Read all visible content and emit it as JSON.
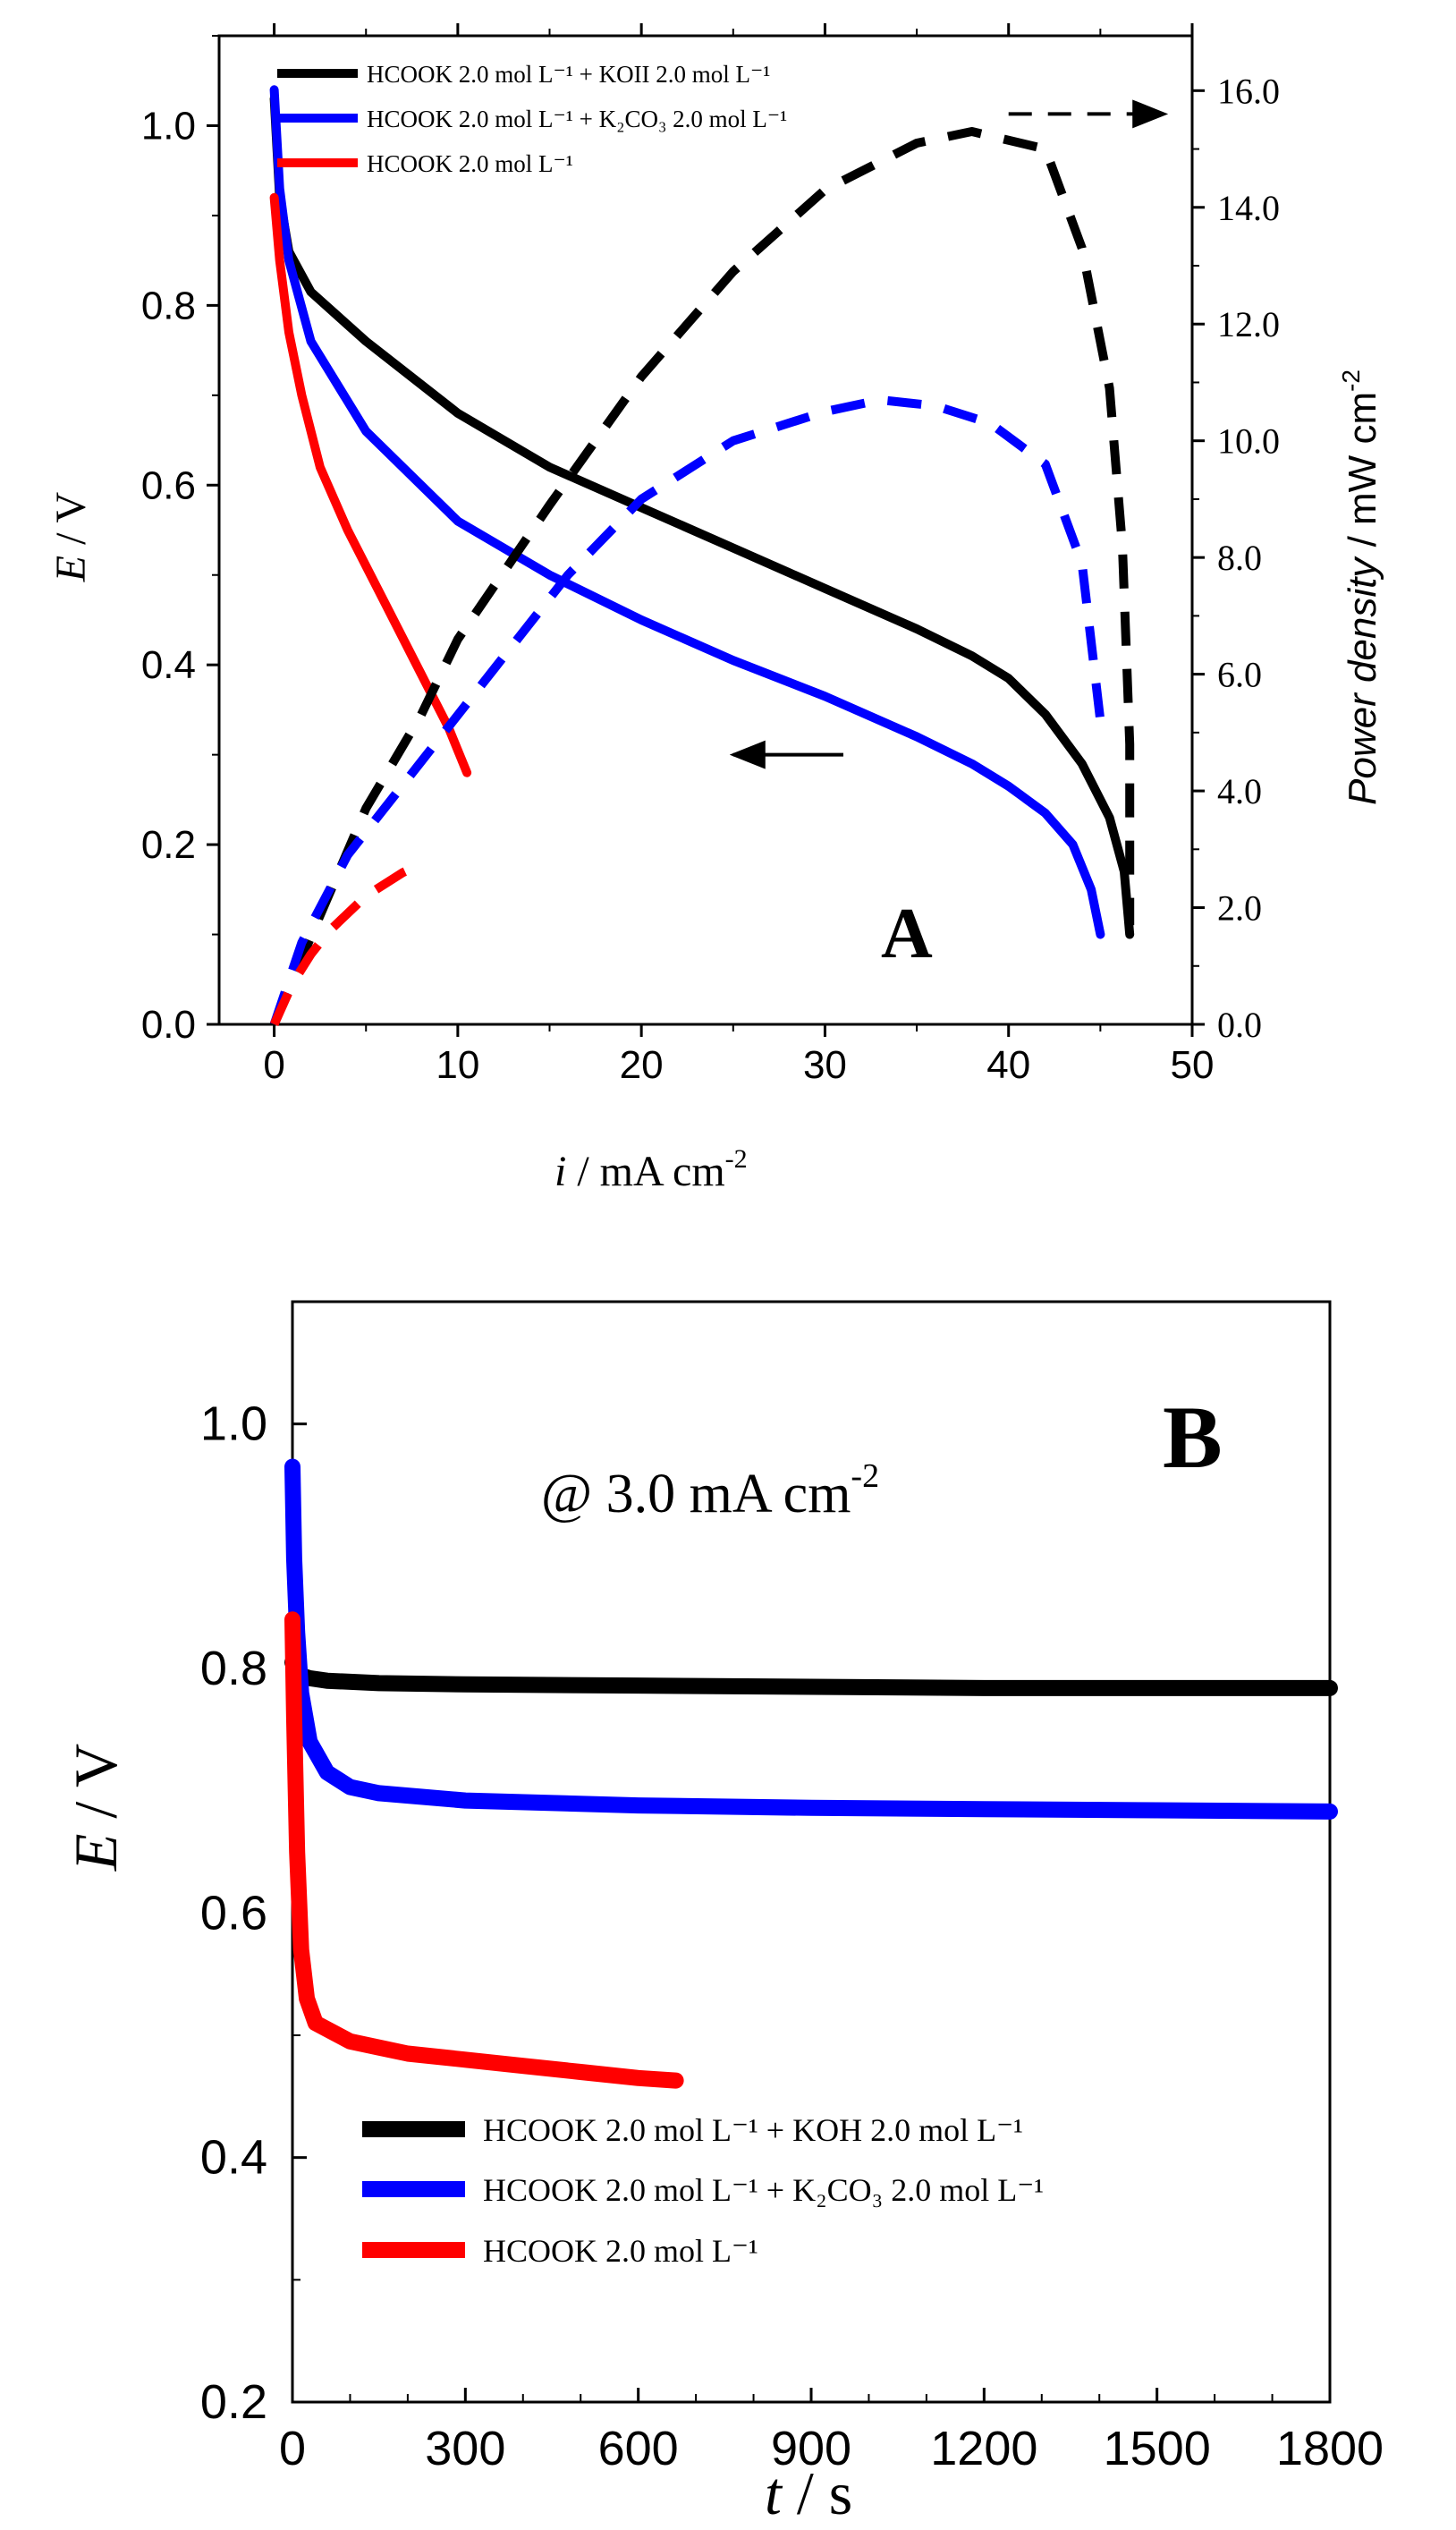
{
  "colors": {
    "koh": "#000000",
    "k2co3": "#0000ff",
    "hcook": "#ff0000",
    "bg": "#ffffff",
    "frame": "#000000"
  },
  "chart_data": [
    {
      "type": "line",
      "panel_label": "A",
      "xlabel_italic": "i",
      "xlabel_rest": " / mA cm",
      "xlabel_sup": "-2",
      "ylabel_italic": "E",
      "ylabel_rest": " / V",
      "y2label_italic": "Power density",
      "y2label_rest": " / mW cm",
      "y2label_sup": "-2",
      "xlim": [
        -3,
        50
      ],
      "ylim": [
        0,
        1.1
      ],
      "y2lim": [
        0,
        16.94
      ],
      "xticks": [
        0,
        10,
        20,
        30,
        40,
        50
      ],
      "xtick_labels": [
        "0",
        "10",
        "20",
        "30",
        "40",
        "50"
      ],
      "yticks": [
        0,
        0.2,
        0.4,
        0.6,
        0.8,
        1.0
      ],
      "ytick_labels": [
        "0.0",
        "0.2",
        "0.4",
        "0.6",
        "0.8",
        "1.0"
      ],
      "y2ticks": [
        0,
        2,
        4,
        6,
        8,
        10,
        12,
        14,
        16
      ],
      "y2tick_labels": [
        "0.0",
        "2.0",
        "4.0",
        "6.0",
        "8.0",
        "10.0",
        "12.0",
        "14.0",
        "16.0"
      ],
      "legend": [
        {
          "key": "koh",
          "color": "#000000",
          "text": "HCOOK  2.0  mol L⁻¹  +  KOII    2.0 mol L⁻¹"
        },
        {
          "key": "k2co3",
          "color": "#0000ff",
          "text": "HCOOK  2.0  mol L⁻¹ + K₂CO₃   2.0 mol L⁻¹"
        },
        {
          "key": "hcook",
          "color": "#ff0000",
          "text": "HCOOK   2.0   mol L⁻¹"
        }
      ],
      "series": [
        {
          "key": "koh",
          "kind": "polarization",
          "color": "#000000",
          "points": [
            [
              0,
              1.03
            ],
            [
              0.3,
              0.92
            ],
            [
              0.8,
              0.86
            ],
            [
              2,
              0.815
            ],
            [
              5,
              0.76
            ],
            [
              10,
              0.68
            ],
            [
              15,
              0.62
            ],
            [
              20,
              0.575
            ],
            [
              25,
              0.53
            ],
            [
              30,
              0.485
            ],
            [
              35,
              0.44
            ],
            [
              38,
              0.41
            ],
            [
              40,
              0.385
            ],
            [
              42,
              0.345
            ],
            [
              44,
              0.29
            ],
            [
              45.5,
              0.23
            ],
            [
              46.3,
              0.17
            ],
            [
              46.6,
              0.1
            ]
          ]
        },
        {
          "key": "k2co3",
          "kind": "polarization",
          "color": "#0000ff",
          "points": [
            [
              0,
              1.04
            ],
            [
              0.3,
              0.93
            ],
            [
              0.8,
              0.85
            ],
            [
              2,
              0.76
            ],
            [
              5,
              0.66
            ],
            [
              10,
              0.56
            ],
            [
              15,
              0.5
            ],
            [
              20,
              0.45
            ],
            [
              25,
              0.405
            ],
            [
              30,
              0.365
            ],
            [
              35,
              0.32
            ],
            [
              38,
              0.29
            ],
            [
              40,
              0.265
            ],
            [
              42,
              0.235
            ],
            [
              43.5,
              0.2
            ],
            [
              44.5,
              0.15
            ],
            [
              45,
              0.1
            ]
          ]
        },
        {
          "key": "hcook",
          "kind": "polarization",
          "color": "#ff0000",
          "points": [
            [
              0,
              0.92
            ],
            [
              0.3,
              0.85
            ],
            [
              0.8,
              0.77
            ],
            [
              1.5,
              0.7
            ],
            [
              2.5,
              0.62
            ],
            [
              4,
              0.55
            ],
            [
              6,
              0.47
            ],
            [
              8,
              0.39
            ],
            [
              9.5,
              0.33
            ],
            [
              10.5,
              0.28
            ]
          ]
        },
        {
          "key": "koh",
          "kind": "power",
          "color": "#000000",
          "points": [
            [
              0,
              0
            ],
            [
              2,
              1.5
            ],
            [
              5,
              3.7
            ],
            [
              8,
              5.3
            ],
            [
              10,
              6.6
            ],
            [
              15,
              8.9
            ],
            [
              20,
              11.1
            ],
            [
              25,
              12.9
            ],
            [
              30,
              14.3
            ],
            [
              35,
              15.1
            ],
            [
              38,
              15.3
            ],
            [
              42,
              15.0
            ],
            [
              44,
              13.3
            ],
            [
              45.5,
              10.9
            ],
            [
              46.2,
              8.2
            ],
            [
              46.6,
              4.8
            ],
            [
              46.6,
              1.7
            ]
          ]
        },
        {
          "key": "k2co3",
          "kind": "power",
          "color": "#0000ff",
          "points": [
            [
              0,
              0
            ],
            [
              1.5,
              1.4
            ],
            [
              4,
              2.9
            ],
            [
              8,
              4.5
            ],
            [
              12,
              6.1
            ],
            [
              16,
              7.7
            ],
            [
              20,
              9.0
            ],
            [
              25,
              10.0
            ],
            [
              30,
              10.5
            ],
            [
              33,
              10.7
            ],
            [
              36,
              10.6
            ],
            [
              39,
              10.3
            ],
            [
              42,
              9.6
            ],
            [
              44,
              7.9
            ],
            [
              45,
              5.2
            ]
          ]
        },
        {
          "key": "hcook",
          "kind": "power",
          "color": "#ff0000",
          "points": [
            [
              0,
              0
            ],
            [
              1,
              0.7
            ],
            [
              2,
              1.2
            ],
            [
              3,
              1.6
            ],
            [
              5,
              2.2
            ],
            [
              7,
              2.6
            ],
            [
              8,
              2.75
            ]
          ]
        }
      ],
      "arrows": [
        {
          "target": "left_axis",
          "from": [
            31,
            0.3
          ],
          "to": [
            25,
            0.3
          ]
        },
        {
          "target": "right_axis",
          "from": [
            40,
            15.6
          ],
          "to": [
            48.5,
            15.6
          ]
        }
      ]
    },
    {
      "type": "line",
      "panel_label": "B",
      "annotation": "@ 3.0 mA cm",
      "annotation_sup": "-2",
      "xlabel_italic": "t",
      "xlabel_rest": " / s",
      "ylabel_italic": "E",
      "ylabel_rest": " / V",
      "xlim": [
        0,
        1800
      ],
      "ylim": [
        0.2,
        1.1
      ],
      "xticks": [
        0,
        300,
        600,
        900,
        1200,
        1500,
        1800
      ],
      "xtick_labels": [
        "0",
        "300",
        "600",
        "900",
        "1200",
        "1500",
        "1800"
      ],
      "yticks": [
        0.2,
        0.4,
        0.6,
        0.8,
        1.0
      ],
      "ytick_labels": [
        "0.2",
        "0.4",
        "0.6",
        "0.8",
        "1.0"
      ],
      "legend": [
        {
          "key": "koh",
          "color": "#000000",
          "text": "HCOOK   2.0  mol L⁻¹ + KOH     2.0 mol L⁻¹"
        },
        {
          "key": "k2co3",
          "color": "#0000ff",
          "text": "HCOOK   2.0  mol L⁻¹  +  K₂CO₃   2.0 mol L⁻¹"
        },
        {
          "key": "hcook",
          "color": "#ff0000",
          "text": "HCOOK   2.0   mol L⁻¹"
        }
      ],
      "series": [
        {
          "key": "koh",
          "color": "#000000",
          "points": [
            [
              0,
              0.805
            ],
            [
              10,
              0.795
            ],
            [
              30,
              0.792
            ],
            [
              60,
              0.79
            ],
            [
              150,
              0.788
            ],
            [
              300,
              0.787
            ],
            [
              600,
              0.786
            ],
            [
              900,
              0.785
            ],
            [
              1200,
              0.784
            ],
            [
              1500,
              0.784
            ],
            [
              1800,
              0.784
            ]
          ]
        },
        {
          "key": "k2co3",
          "color": "#0000ff",
          "points": [
            [
              0,
              0.965
            ],
            [
              3,
              0.89
            ],
            [
              8,
              0.83
            ],
            [
              15,
              0.78
            ],
            [
              30,
              0.74
            ],
            [
              60,
              0.715
            ],
            [
              100,
              0.703
            ],
            [
              150,
              0.698
            ],
            [
              300,
              0.692
            ],
            [
              600,
              0.688
            ],
            [
              900,
              0.686
            ],
            [
              1200,
              0.685
            ],
            [
              1500,
              0.684
            ],
            [
              1800,
              0.683
            ]
          ]
        },
        {
          "key": "hcook",
          "color": "#ff0000",
          "points": [
            [
              0,
              0.84
            ],
            [
              3,
              0.76
            ],
            [
              8,
              0.65
            ],
            [
              15,
              0.57
            ],
            [
              25,
              0.53
            ],
            [
              40,
              0.51
            ],
            [
              60,
              0.505
            ],
            [
              100,
              0.495
            ],
            [
              150,
              0.49
            ],
            [
              200,
              0.485
            ],
            [
              300,
              0.48
            ],
            [
              400,
              0.475
            ],
            [
              500,
              0.47
            ],
            [
              600,
              0.465
            ],
            [
              665,
              0.463
            ]
          ]
        }
      ]
    }
  ]
}
